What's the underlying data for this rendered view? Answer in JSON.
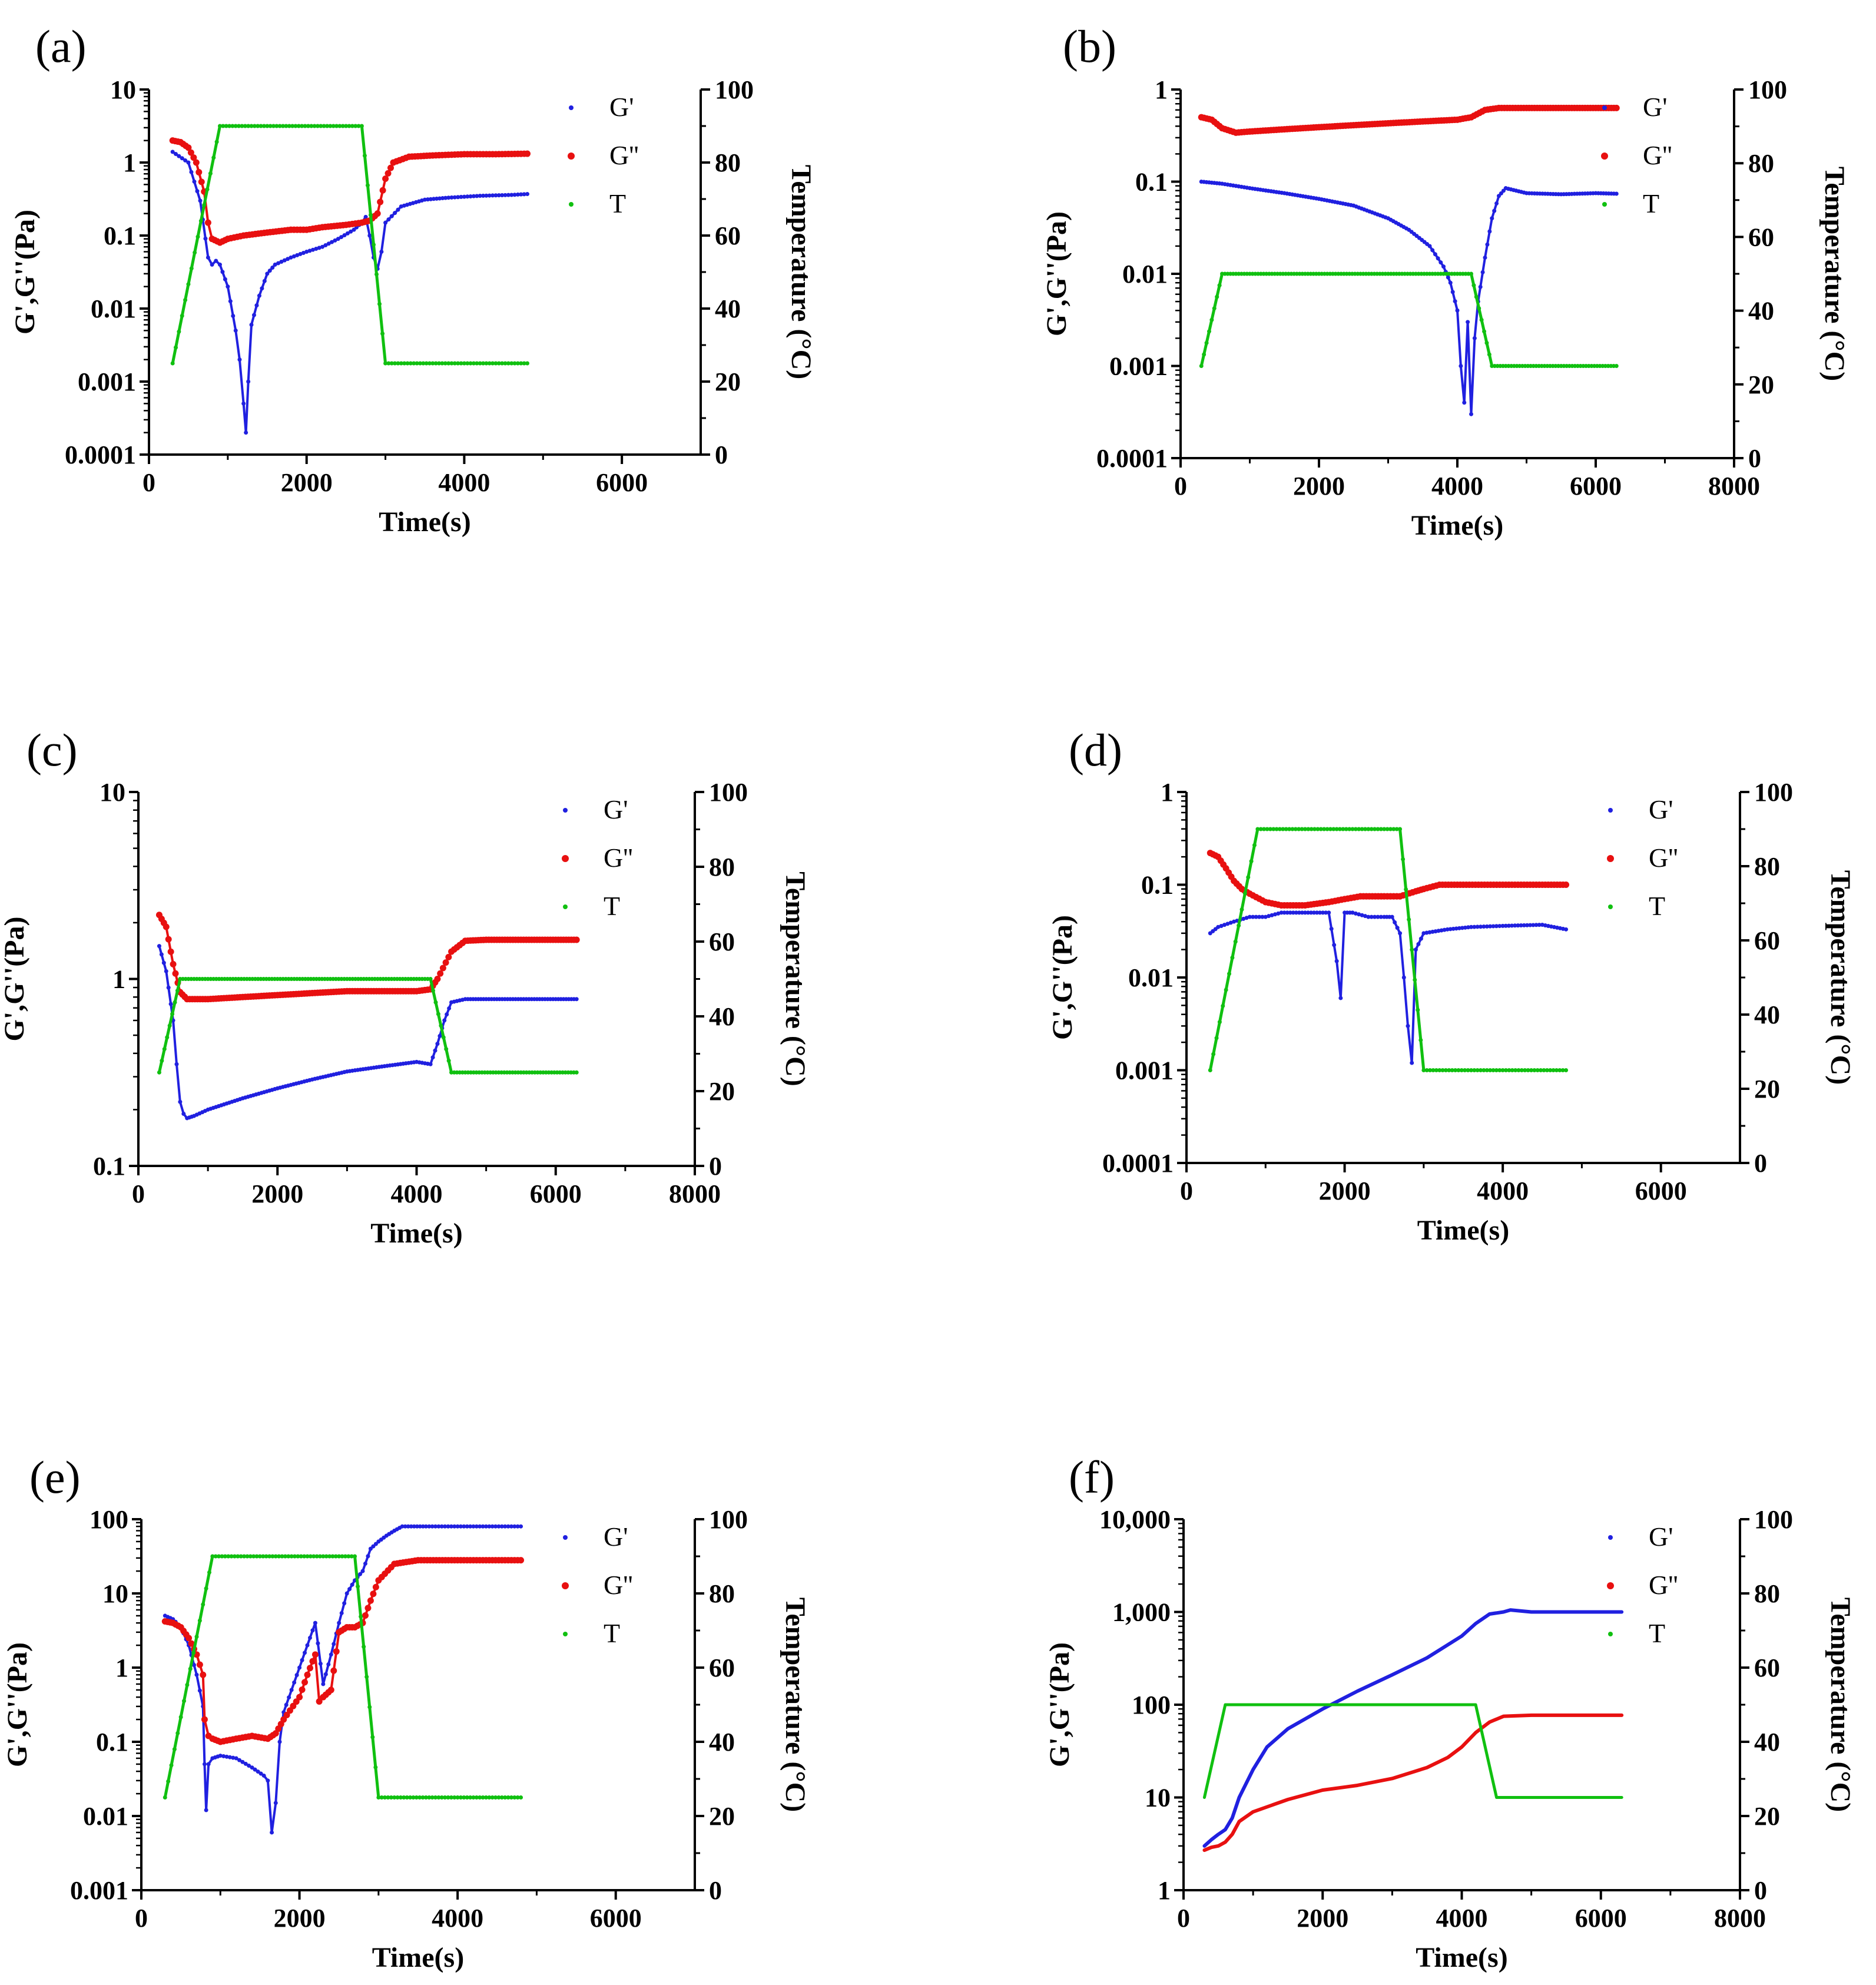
{
  "chart_data": [
    {
      "type": "scatter",
      "panel": "(a)",
      "xlabel": "Time(s)",
      "ylabel": "G',G''(Pa)",
      "y2label": "Temperature (°C)",
      "xlim": [
        0,
        7000
      ],
      "xticks": [
        0,
        2000,
        4000,
        6000
      ],
      "ylim": [
        0.0001,
        10
      ],
      "ylog": true,
      "yticks": [
        0.0001,
        0.001,
        0.01,
        0.1,
        1,
        10
      ],
      "yticklabels": [
        "0.0001",
        "0.001",
        "0.01",
        "0.1",
        "1",
        "10"
      ],
      "y2lim": [
        0,
        100
      ],
      "y2ticks": [
        0,
        20,
        40,
        60,
        80,
        100
      ],
      "legend": "top-right",
      "series": [
        {
          "name": "G'",
          "color": "#2020e0",
          "axis": "left",
          "x": [
            300,
            500,
            650,
            750,
            800,
            850,
            900,
            1000,
            1100,
            1150,
            1200,
            1230,
            1260,
            1300,
            1400,
            1500,
            1600,
            1800,
            2000,
            2200,
            2400,
            2600,
            2700,
            2750,
            2800,
            2850,
            2900,
            2950,
            3000,
            3200,
            3500,
            3800,
            4200,
            4600,
            4800
          ],
          "y": [
            1.4,
            1.0,
            0.3,
            0.05,
            0.04,
            0.045,
            0.04,
            0.02,
            0.005,
            0.002,
            0.0005,
            0.0002,
            0.001,
            0.006,
            0.015,
            0.03,
            0.04,
            0.05,
            0.06,
            0.07,
            0.09,
            0.12,
            0.15,
            0.18,
            0.1,
            0.05,
            0.035,
            0.06,
            0.15,
            0.25,
            0.31,
            0.33,
            0.35,
            0.36,
            0.37
          ]
        },
        {
          "name": "G''",
          "color": "#e81010",
          "axis": "left",
          "x": [
            300,
            400,
            500,
            600,
            700,
            750,
            800,
            900,
            1000,
            1200,
            1500,
            1800,
            2000,
            2200,
            2500,
            2700,
            2800,
            2900,
            3000,
            3100,
            3300,
            3600,
            4000,
            4400,
            4800
          ],
          "y": [
            2.0,
            1.9,
            1.6,
            1.0,
            0.4,
            0.15,
            0.09,
            0.08,
            0.09,
            0.1,
            0.11,
            0.12,
            0.12,
            0.13,
            0.14,
            0.15,
            0.16,
            0.2,
            0.6,
            1.0,
            1.2,
            1.25,
            1.3,
            1.3,
            1.32
          ]
        },
        {
          "name": "T",
          "color": "#10c010",
          "axis": "right",
          "x": [
            300,
            900,
            2700,
            3000,
            4800
          ],
          "y": [
            25,
            90,
            90,
            25,
            25
          ]
        }
      ]
    },
    {
      "type": "scatter",
      "panel": "(b)",
      "xlabel": "Time(s)",
      "ylabel": "G',G''(Pa)",
      "y2label": "Temperature (°C)",
      "xlim": [
        0,
        8000
      ],
      "xticks": [
        0,
        2000,
        4000,
        6000,
        8000
      ],
      "ylim": [
        0.0001,
        1
      ],
      "ylog": true,
      "yticks": [
        0.0001,
        0.001,
        0.01,
        0.1,
        1
      ],
      "yticklabels": [
        "0.0001",
        "0.001",
        "0.01",
        "0.1",
        "1"
      ],
      "y2lim": [
        0,
        100
      ],
      "y2ticks": [
        0,
        20,
        40,
        60,
        80,
        100
      ],
      "legend": "top-right",
      "series": [
        {
          "name": "G'",
          "color": "#2020e0",
          "axis": "left",
          "x": [
            300,
            600,
            1000,
            1500,
            2000,
            2500,
            3000,
            3300,
            3600,
            3800,
            3900,
            4000,
            4050,
            4100,
            4150,
            4200,
            4250,
            4300,
            4400,
            4500,
            4600,
            4700,
            5000,
            5500,
            6000,
            6300
          ],
          "y": [
            0.1,
            0.095,
            0.085,
            0.075,
            0.065,
            0.055,
            0.04,
            0.03,
            0.02,
            0.012,
            0.008,
            0.004,
            0.001,
            0.0004,
            0.003,
            0.0003,
            0.002,
            0.005,
            0.015,
            0.04,
            0.07,
            0.085,
            0.075,
            0.073,
            0.075,
            0.074
          ]
        },
        {
          "name": "G''",
          "color": "#e81010",
          "axis": "left",
          "x": [
            300,
            450,
            600,
            800,
            1000,
            1500,
            2000,
            2500,
            3000,
            3500,
            4000,
            4200,
            4400,
            4600,
            5000,
            5500,
            6000,
            6300
          ],
          "y": [
            0.5,
            0.47,
            0.38,
            0.34,
            0.35,
            0.37,
            0.39,
            0.41,
            0.43,
            0.45,
            0.47,
            0.5,
            0.6,
            0.63,
            0.63,
            0.63,
            0.63,
            0.63
          ]
        },
        {
          "name": "T",
          "color": "#10c010",
          "axis": "right",
          "x": [
            300,
            600,
            4200,
            4500,
            6300
          ],
          "y": [
            25,
            50,
            50,
            25,
            25
          ]
        }
      ]
    },
    {
      "type": "scatter",
      "panel": "(c)",
      "xlabel": "Time(s)",
      "ylabel": "G',G''(Pa)",
      "y2label": "Temperature (°C)",
      "xlim": [
        0,
        8000
      ],
      "xticks": [
        0,
        2000,
        4000,
        6000,
        8000
      ],
      "ylim": [
        0.1,
        10
      ],
      "ylog": true,
      "yticks": [
        0.1,
        1,
        10
      ],
      "yticklabels": [
        "0.1",
        "1",
        "10"
      ],
      "y2lim": [
        0,
        100
      ],
      "y2ticks": [
        0,
        20,
        40,
        60,
        80,
        100
      ],
      "legend": "top-right",
      "series": [
        {
          "name": "G'",
          "color": "#2020e0",
          "axis": "left",
          "x": [
            300,
            400,
            500,
            550,
            600,
            650,
            700,
            800,
            1000,
            1500,
            2000,
            2500,
            3000,
            3500,
            4000,
            4200,
            4300,
            4400,
            4500,
            4700,
            5000,
            5500,
            6000,
            6300
          ],
          "y": [
            1.5,
            1.1,
            0.6,
            0.35,
            0.22,
            0.19,
            0.18,
            0.185,
            0.2,
            0.23,
            0.26,
            0.29,
            0.32,
            0.34,
            0.36,
            0.35,
            0.45,
            0.6,
            0.75,
            0.78,
            0.78,
            0.78,
            0.78,
            0.78
          ]
        },
        {
          "name": "G''",
          "color": "#e81010",
          "axis": "left",
          "x": [
            300,
            400,
            500,
            600,
            700,
            1000,
            1500,
            2000,
            2500,
            3000,
            3500,
            4000,
            4200,
            4300,
            4500,
            4700,
            5000,
            5500,
            6000,
            6300
          ],
          "y": [
            2.2,
            1.9,
            1.2,
            0.85,
            0.78,
            0.78,
            0.8,
            0.82,
            0.84,
            0.86,
            0.86,
            0.86,
            0.88,
            1.0,
            1.4,
            1.6,
            1.62,
            1.62,
            1.62,
            1.62
          ]
        },
        {
          "name": "T",
          "color": "#10c010",
          "axis": "right",
          "x": [
            300,
            600,
            4200,
            4500,
            6300
          ],
          "y": [
            25,
            50,
            50,
            25,
            25
          ]
        }
      ]
    },
    {
      "type": "scatter",
      "panel": "(d)",
      "xlabel": "Time(s)",
      "ylabel": "G',G''(Pa)",
      "y2label": "Temperature (°C)",
      "xlim": [
        0,
        7000
      ],
      "xticks": [
        0,
        2000,
        4000,
        6000
      ],
      "ylim": [
        0.0001,
        1
      ],
      "ylog": true,
      "yticks": [
        0.0001,
        0.001,
        0.01,
        0.1,
        1
      ],
      "yticklabels": [
        "0.0001",
        "0.001",
        "0.01",
        "0.1",
        "1"
      ],
      "y2lim": [
        0,
        100
      ],
      "y2ticks": [
        0,
        20,
        40,
        60,
        80,
        100
      ],
      "legend": "top-right",
      "series": [
        {
          "name": "G'",
          "color": "#2020e0",
          "axis": "left",
          "x": [
            300,
            400,
            600,
            800,
            1000,
            1200,
            1500,
            1800,
            1900,
            1950,
            2000,
            2100,
            2300,
            2500,
            2600,
            2700,
            2750,
            2800,
            2850,
            2900,
            3000,
            3300,
            3600,
            4000,
            4500,
            4800
          ],
          "y": [
            0.03,
            0.035,
            0.04,
            0.045,
            0.045,
            0.05,
            0.05,
            0.05,
            0.015,
            0.006,
            0.05,
            0.05,
            0.045,
            0.045,
            0.045,
            0.03,
            0.01,
            0.003,
            0.0012,
            0.02,
            0.03,
            0.033,
            0.035,
            0.036,
            0.037,
            0.033
          ]
        },
        {
          "name": "G''",
          "color": "#e81010",
          "axis": "left",
          "x": [
            300,
            400,
            500,
            600,
            700,
            800,
            1000,
            1200,
            1500,
            1800,
            2000,
            2200,
            2500,
            2700,
            2900,
            3000,
            3200,
            3500,
            4000,
            4500,
            4800
          ],
          "y": [
            0.22,
            0.2,
            0.15,
            0.11,
            0.09,
            0.08,
            0.065,
            0.06,
            0.06,
            0.065,
            0.07,
            0.075,
            0.075,
            0.075,
            0.085,
            0.09,
            0.1,
            0.1,
            0.1,
            0.1,
            0.1
          ]
        },
        {
          "name": "T",
          "color": "#10c010",
          "axis": "right",
          "x": [
            300,
            900,
            2700,
            3000,
            4800
          ],
          "y": [
            25,
            90,
            90,
            25,
            25
          ]
        }
      ]
    },
    {
      "type": "scatter",
      "panel": "(e)",
      "xlabel": "Time(s)",
      "ylabel": "G',G''(Pa)",
      "y2label": "Temperature (°C)",
      "xlim": [
        0,
        7000
      ],
      "xticks": [
        0,
        2000,
        4000,
        6000
      ],
      "ylim": [
        0.001,
        100
      ],
      "ylog": true,
      "yticks": [
        0.001,
        0.01,
        0.1,
        1,
        10,
        100
      ],
      "yticklabels": [
        "0.001",
        "0.01",
        "0.1",
        "1",
        "10",
        "100"
      ],
      "y2lim": [
        0,
        100
      ],
      "y2ticks": [
        0,
        20,
        40,
        60,
        80,
        100
      ],
      "legend": "top-right",
      "series": [
        {
          "name": "G'",
          "color": "#2020e0",
          "axis": "left",
          "x": [
            300,
            400,
            500,
            600,
            700,
            780,
            800,
            820,
            850,
            900,
            1000,
            1200,
            1400,
            1550,
            1600,
            1650,
            1700,
            1750,
            1800,
            1900,
            2000,
            2100,
            2200,
            2300,
            2400,
            2500,
            2600,
            2700,
            2800,
            2900,
            3000,
            3100,
            3200,
            3300,
            3600,
            4000,
            4400,
            4800
          ],
          "y": [
            5,
            4.5,
            3.5,
            2.0,
            0.8,
            0.3,
            0.05,
            0.012,
            0.05,
            0.06,
            0.065,
            0.06,
            0.045,
            0.035,
            0.03,
            0.006,
            0.015,
            0.1,
            0.25,
            0.5,
            1.0,
            2.0,
            4.0,
            0.6,
            1.5,
            4.0,
            10,
            15,
            20,
            40,
            50,
            60,
            70,
            80,
            80,
            80,
            80,
            80
          ]
        },
        {
          "name": "G''",
          "color": "#e81010",
          "axis": "left",
          "x": [
            300,
            400,
            500,
            600,
            700,
            780,
            800,
            850,
            900,
            1000,
            1200,
            1400,
            1600,
            1700,
            1800,
            2000,
            2100,
            2200,
            2250,
            2300,
            2400,
            2500,
            2600,
            2700,
            2800,
            2900,
            3000,
            3200,
            3500,
            4000,
            4400,
            4800
          ],
          "y": [
            4.2,
            4.0,
            3.5,
            2.5,
            1.5,
            0.8,
            0.2,
            0.12,
            0.11,
            0.1,
            0.11,
            0.12,
            0.11,
            0.13,
            0.2,
            0.4,
            0.8,
            1.5,
            0.35,
            0.4,
            0.5,
            3.0,
            3.5,
            3.5,
            4.0,
            8,
            15,
            25,
            28,
            28,
            28,
            28
          ]
        },
        {
          "name": "T",
          "color": "#10c010",
          "axis": "right",
          "x": [
            300,
            900,
            2700,
            3000,
            4800
          ],
          "y": [
            25,
            90,
            90,
            25,
            25
          ]
        }
      ]
    },
    {
      "type": "line",
      "panel": "(f)",
      "xlabel": "Time(s)",
      "ylabel": "G',G''(Pa)",
      "y2label": "Temperature (°C)",
      "xlim": [
        0,
        8000
      ],
      "xticks": [
        0,
        2000,
        4000,
        6000,
        8000
      ],
      "ylim": [
        1,
        10000
      ],
      "ylog": true,
      "yticks": [
        1,
        10,
        100,
        1000,
        10000
      ],
      "yticklabels": [
        "1",
        "10",
        "100",
        "1,000",
        "10,000"
      ],
      "y2lim": [
        0,
        100
      ],
      "y2ticks": [
        0,
        20,
        40,
        60,
        80,
        100
      ],
      "legend": "top-right",
      "series": [
        {
          "name": "G'",
          "color": "#2020e0",
          "axis": "left",
          "x": [
            300,
            400,
            500,
            600,
            700,
            800,
            1000,
            1200,
            1500,
            2000,
            2500,
            3000,
            3500,
            4000,
            4200,
            4400,
            4600,
            4700,
            5000,
            5500,
            6000,
            6300
          ],
          "y": [
            3.0,
            3.5,
            4.0,
            4.5,
            6,
            10,
            20,
            35,
            55,
            90,
            140,
            210,
            320,
            550,
            750,
            950,
            1000,
            1050,
            1000,
            1000,
            1000,
            1000
          ]
        },
        {
          "name": "G''",
          "color": "#e81010",
          "axis": "left",
          "x": [
            300,
            400,
            500,
            600,
            700,
            800,
            1000,
            1500,
            2000,
            2500,
            3000,
            3500,
            3800,
            4000,
            4200,
            4400,
            4600,
            5000,
            5500,
            6000,
            6300
          ],
          "y": [
            2.7,
            2.9,
            3.0,
            3.3,
            4,
            5.5,
            7,
            9.5,
            12,
            13.5,
            16,
            21,
            27,
            35,
            50,
            65,
            75,
            77,
            77,
            77,
            77
          ]
        },
        {
          "name": "T",
          "color": "#10c010",
          "axis": "right",
          "x": [
            300,
            600,
            4200,
            4500,
            6300
          ],
          "y": [
            25,
            50,
            50,
            25,
            25
          ]
        }
      ]
    }
  ]
}
